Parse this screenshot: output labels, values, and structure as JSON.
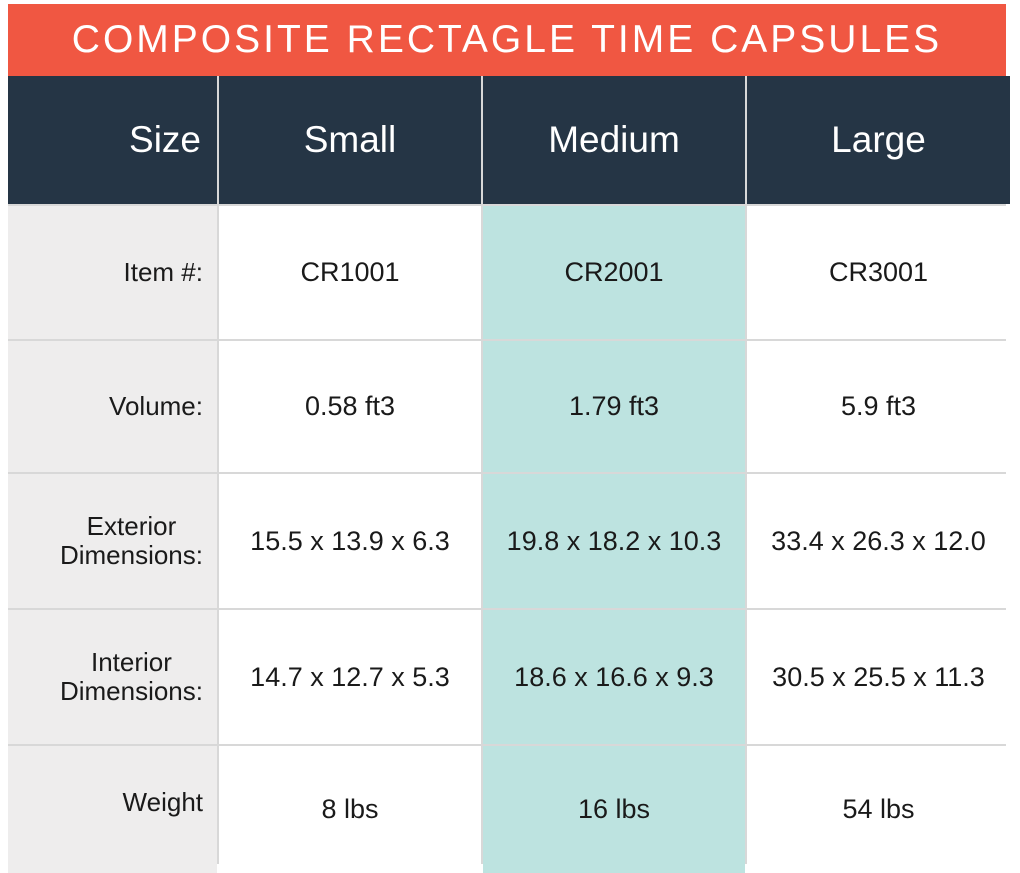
{
  "title": "COMPOSITE RECTAGLE TIME CAPSULES",
  "header": {
    "label": "Size",
    "columns": [
      "Small",
      "Medium",
      "Large"
    ]
  },
  "rows": [
    {
      "label": [
        "Item #:"
      ],
      "values": [
        "CR1001",
        "CR2001",
        "CR3001"
      ]
    },
    {
      "label": [
        "Volume:"
      ],
      "values": [
        "0.58 ft3",
        "1.79 ft3",
        "5.9 ft3"
      ]
    },
    {
      "label": [
        "Exterior",
        "Dimensions:"
      ],
      "values": [
        "15.5 x 13.9 x 6.3",
        "19.8 x 18.2 x 10.3",
        "33.4 x 26.3 x 12.0"
      ]
    },
    {
      "label": [
        "Interior",
        "Dimensions:"
      ],
      "values": [
        "14.7 x 12.7 x 5.3",
        "18.6 x 16.6 x 9.3",
        "30.5 x 25.5 x 11.3"
      ]
    },
    {
      "label": [
        "Weight"
      ],
      "values": [
        "8 lbs",
        "16 lbs",
        "54 lbs"
      ]
    }
  ],
  "colors": {
    "title_bg": "#f05742",
    "header_bg": "#253545",
    "label_bg": "#eeeded",
    "highlight_bg": "#bde3e0"
  }
}
